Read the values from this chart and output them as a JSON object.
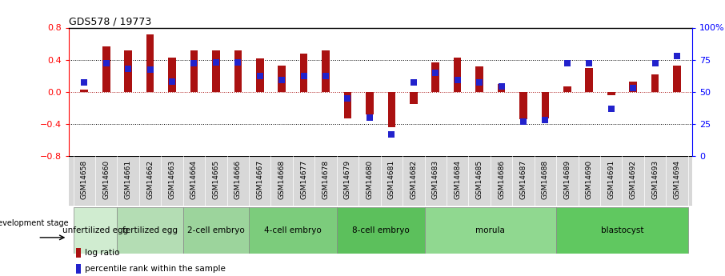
{
  "title": "GDS578 / 19773",
  "samples": [
    "GSM14658",
    "GSM14660",
    "GSM14661",
    "GSM14662",
    "GSM14663",
    "GSM14664",
    "GSM14665",
    "GSM14666",
    "GSM14667",
    "GSM14668",
    "GSM14677",
    "GSM14678",
    "GSM14679",
    "GSM14680",
    "GSM14681",
    "GSM14682",
    "GSM14683",
    "GSM14684",
    "GSM14685",
    "GSM14686",
    "GSM14687",
    "GSM14688",
    "GSM14689",
    "GSM14690",
    "GSM14691",
    "GSM14692",
    "GSM14693",
    "GSM14694"
  ],
  "log_ratio": [
    0.03,
    0.57,
    0.52,
    0.72,
    0.43,
    0.52,
    0.52,
    0.52,
    0.42,
    0.33,
    0.48,
    0.52,
    -0.33,
    -0.28,
    -0.44,
    -0.15,
    0.37,
    0.43,
    0.32,
    0.1,
    -0.34,
    -0.33,
    0.07,
    0.3,
    -0.04,
    0.13,
    0.22,
    0.33
  ],
  "percentile": [
    57,
    72,
    68,
    67,
    58,
    72,
    73,
    73,
    62,
    59,
    62,
    62,
    45,
    30,
    17,
    57,
    65,
    59,
    57,
    54,
    27,
    28,
    72,
    72,
    37,
    53,
    72,
    78
  ],
  "groups": [
    {
      "label": "unfertilized egg",
      "start": 0,
      "end": 2,
      "color": "#d8efd8"
    },
    {
      "label": "fertilized egg",
      "start": 2,
      "end": 5,
      "color": "#b8e0b8"
    },
    {
      "label": "2-cell embryo",
      "start": 5,
      "end": 8,
      "color": "#98d898"
    },
    {
      "label": "4-cell embryo",
      "start": 8,
      "end": 12,
      "color": "#78cc78"
    },
    {
      "label": "8-cell embryo",
      "start": 12,
      "end": 16,
      "color": "#58c058"
    },
    {
      "label": "morula",
      "start": 16,
      "end": 22,
      "color": "#88d888"
    },
    {
      "label": "blastocyst",
      "start": 22,
      "end": 28,
      "color": "#58cc58"
    }
  ],
  "bar_color": "#aa1111",
  "dot_color": "#2222cc",
  "ylim_left": [
    -0.8,
    0.8
  ],
  "ylim_right": [
    0,
    100
  ],
  "development_stage_label": "development stage",
  "legend_log_ratio": "log ratio",
  "legend_percentile": "percentile rank within the sample",
  "background_color": "#ffffff"
}
